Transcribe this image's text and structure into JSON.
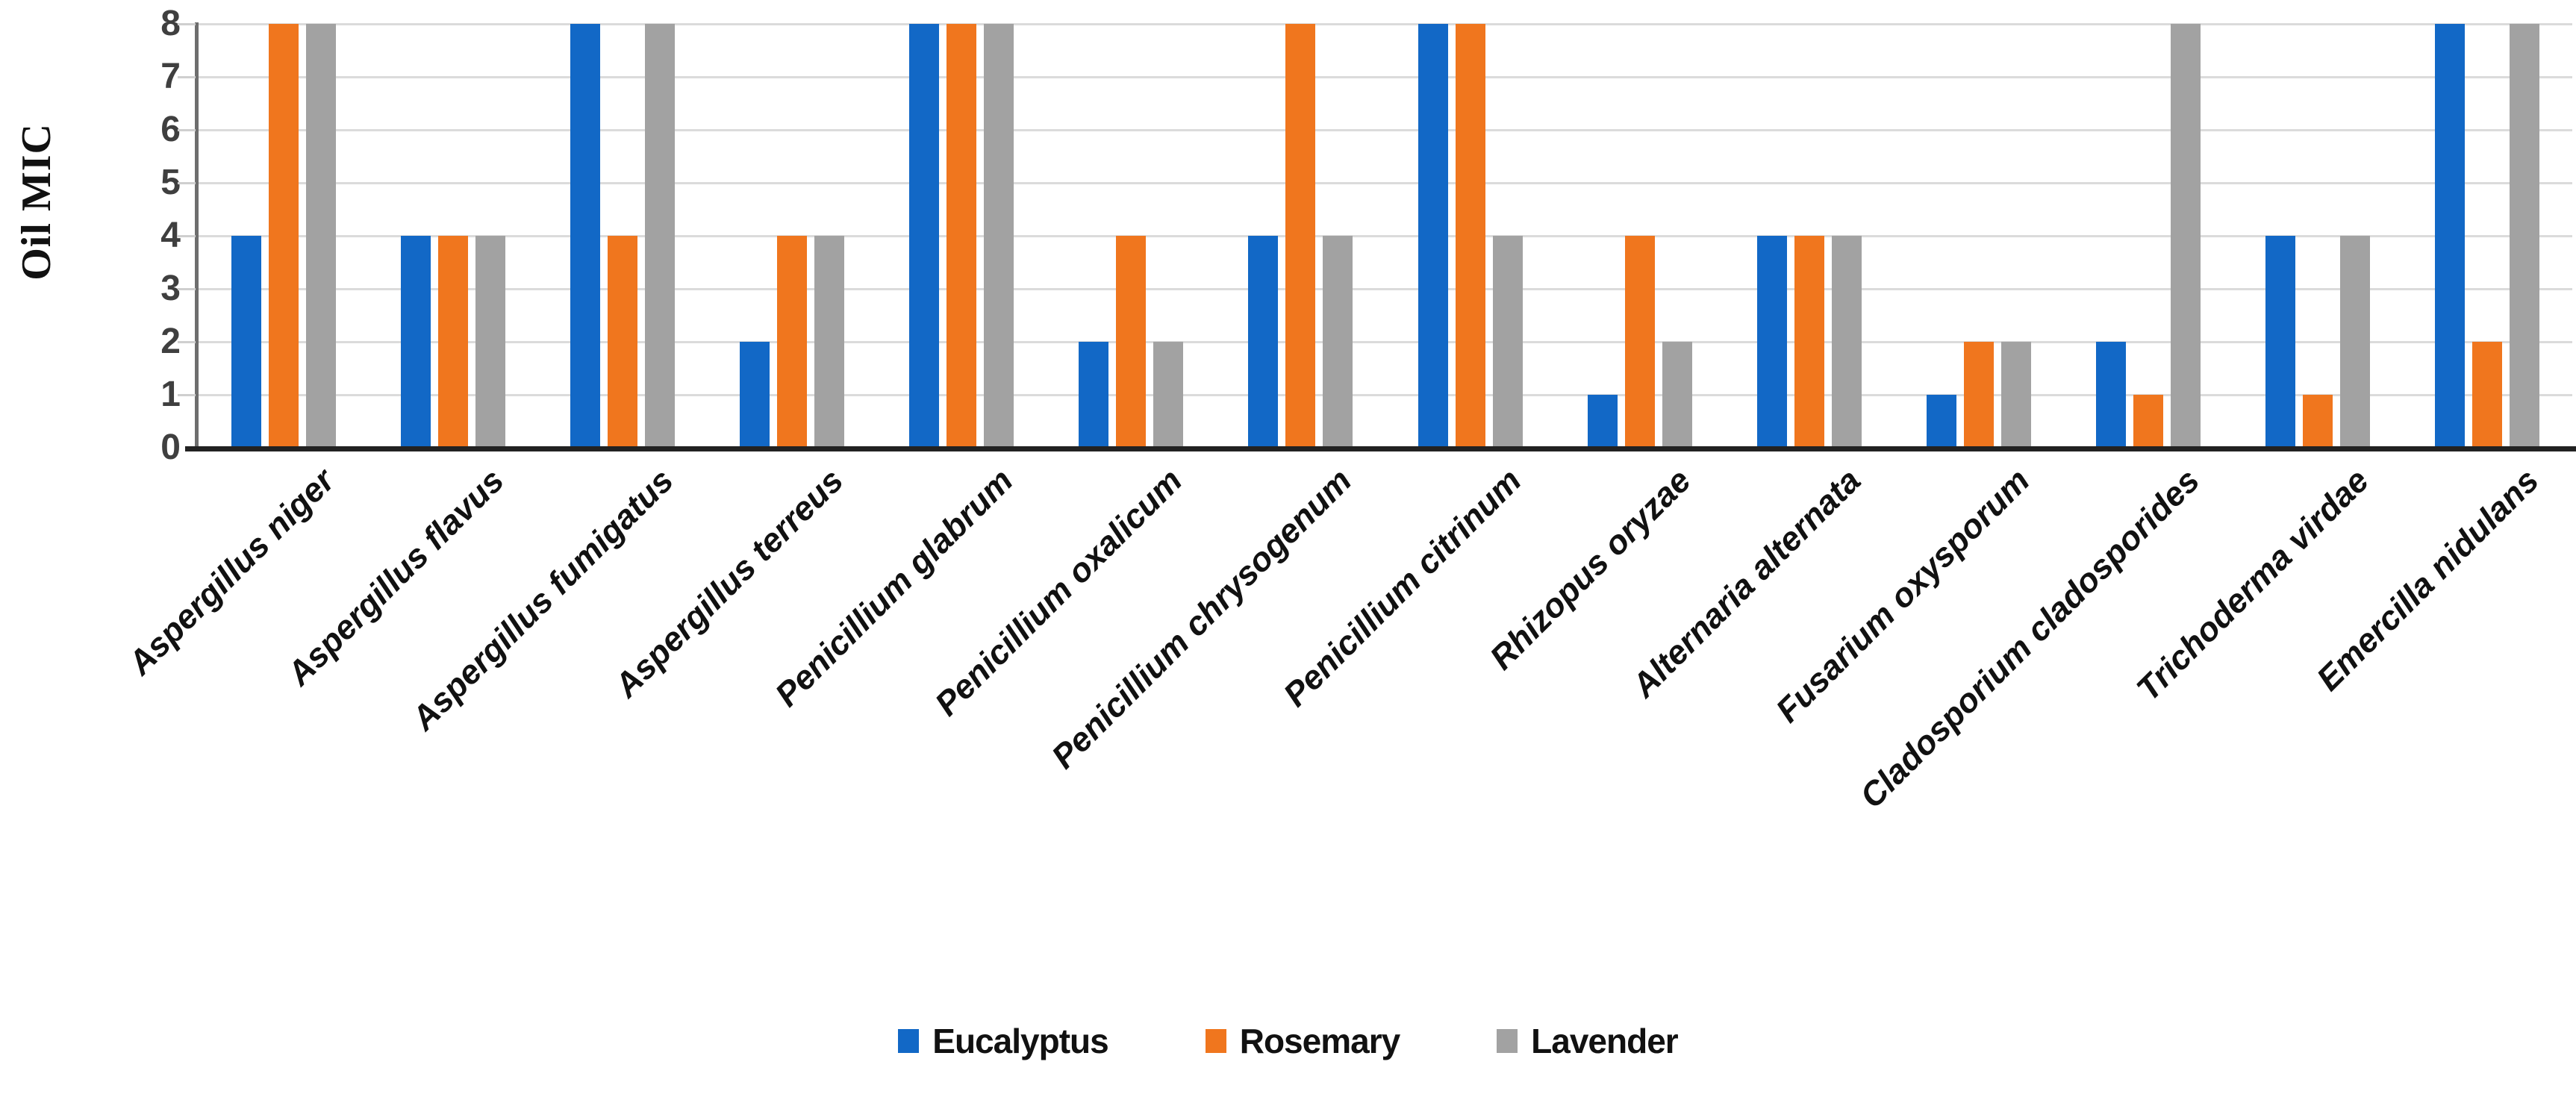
{
  "chart_data": {
    "type": "bar",
    "title": "",
    "ylabel": "Oil MIC",
    "xlabel": "",
    "ylim": [
      0,
      8
    ],
    "yticks": [
      0,
      1,
      2,
      3,
      4,
      5,
      6,
      7,
      8
    ],
    "grid": true,
    "legend_position": "bottom",
    "categories": [
      "Aspergillus niger",
      "Aspergillus flavus",
      "Aspergillus fumigatus",
      "Aspergillus terreus",
      "Penicillium glabrum",
      "Penicillium oxalicum",
      "Penicillium chrysogenum",
      "Penicillium citrinum",
      "Rhizopus oryzae",
      "Alternaria alternata",
      "Fusarium oxysporum",
      "Cladosporium cladosporides",
      "Trichoderma virdae",
      "Emercilla nidulans"
    ],
    "series": [
      {
        "name": "Eucalyptus",
        "color": "#1268C6",
        "values": [
          4,
          4,
          8,
          2,
          8,
          2,
          4,
          8,
          1,
          4,
          1,
          2,
          4,
          8
        ]
      },
      {
        "name": "Rosemary",
        "color": "#F0761E",
        "values": [
          8,
          4,
          4,
          4,
          8,
          4,
          8,
          8,
          4,
          4,
          2,
          1,
          1,
          2
        ]
      },
      {
        "name": "Lavender",
        "color": "#A2A2A2",
        "values": [
          8,
          4,
          8,
          4,
          8,
          2,
          4,
          4,
          2,
          4,
          2,
          8,
          4,
          8
        ]
      }
    ]
  },
  "colors": {
    "background": "#FFFFFF",
    "gridline": "#DBDBDB",
    "tick_mark": "#CFCFCF",
    "axis_y_line": "#6E6E6E",
    "axis_x_line": "#222222",
    "tick_text": "#3F3F3F",
    "category_text": "#111111",
    "legend_text": "#111111"
  }
}
